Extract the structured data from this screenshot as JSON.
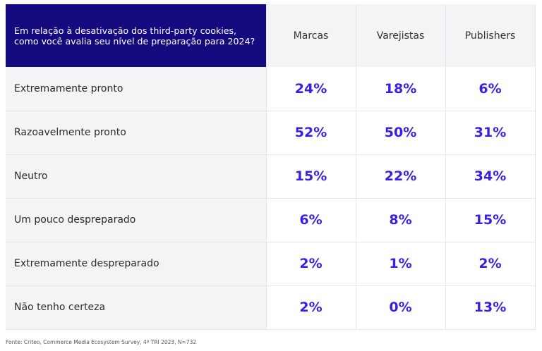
{
  "header": {
    "question": "Em relação à desativação dos third-party cookies, como você avalia seu nível de preparação para 2024?"
  },
  "chart_data": {
    "type": "table",
    "columns": [
      "Marcas",
      "Varejistas",
      "Publishers"
    ],
    "rows": [
      {
        "label": "Extremamente pronto",
        "values": [
          "24%",
          "18%",
          "6%"
        ]
      },
      {
        "label": "Razoavelmente pronto",
        "values": [
          "52%",
          "50%",
          "31%"
        ]
      },
      {
        "label": "Neutro",
        "values": [
          "15%",
          "22%",
          "34%"
        ]
      },
      {
        "label": "Um pouco despreparado",
        "values": [
          "6%",
          "8%",
          "15%"
        ]
      },
      {
        "label": "Extremamente despreparado",
        "values": [
          "2%",
          "1%",
          "2%"
        ]
      },
      {
        "label": "Não tenho certeza",
        "values": [
          "2%",
          "0%",
          "13%"
        ]
      }
    ]
  },
  "colors": {
    "header_bg": "#150a80",
    "value_text": "#3b1ee6",
    "label_bg": "#f4f4f6"
  },
  "footnote": "Fonte: Criteo, Commerce Media Ecosystem Survey, 4º TRI 2023, N=732"
}
